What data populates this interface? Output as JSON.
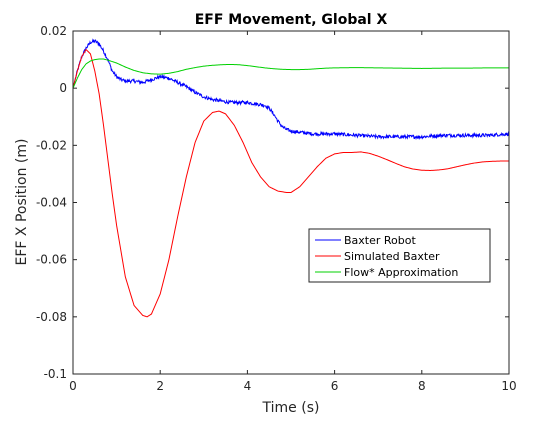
{
  "chart_data": {
    "type": "line",
    "title": "EFF Movement, Global X",
    "xlabel": "Time (s)",
    "ylabel": "EFF X Position (m)",
    "xlim": [
      0,
      10
    ],
    "ylim": [
      -0.1,
      0.02
    ],
    "xticks": [
      0,
      2,
      4,
      6,
      8,
      10
    ],
    "yticks": [
      0.02,
      0,
      -0.02,
      -0.04,
      -0.06,
      -0.08,
      -0.1
    ],
    "xtick_labels": [
      "0",
      "2",
      "4",
      "6",
      "8",
      "10"
    ],
    "ytick_labels": [
      "0.02",
      "0",
      "-0.02",
      "-0.04",
      "-0.06",
      "-0.08",
      "-0.1"
    ],
    "grid": false,
    "legend_position": "right",
    "series": [
      {
        "name": "Baxter Robot",
        "color": "#0000ff",
        "noisy": true,
        "x": [
          0,
          0.1,
          0.2,
          0.3,
          0.4,
          0.5,
          0.6,
          0.7,
          0.8,
          0.9,
          1.0,
          1.1,
          1.2,
          1.3,
          1.4,
          1.6,
          1.8,
          2.0,
          2.2,
          2.4,
          2.6,
          2.8,
          3.0,
          3.2,
          3.4,
          3.6,
          3.8,
          4.0,
          4.2,
          4.4,
          4.5,
          4.6,
          4.7,
          4.8,
          4.9,
          5.0,
          5.5,
          6.0,
          6.5,
          7.0,
          7.5,
          8.0,
          8.5,
          9.0,
          9.5,
          10.0
        ],
        "y": [
          0,
          0.006,
          0.011,
          0.014,
          0.016,
          0.0165,
          0.0155,
          0.013,
          0.01,
          0.006,
          0.004,
          0.003,
          0.0025,
          0.0025,
          0.0025,
          0.002,
          0.003,
          0.004,
          0.0035,
          0.002,
          0.0005,
          -0.0015,
          -0.003,
          -0.004,
          -0.0045,
          -0.005,
          -0.005,
          -0.005,
          -0.0055,
          -0.006,
          -0.007,
          -0.009,
          -0.0115,
          -0.0135,
          -0.0145,
          -0.015,
          -0.016,
          -0.016,
          -0.0165,
          -0.017,
          -0.017,
          -0.017,
          -0.0165,
          -0.0165,
          -0.0165,
          -0.016
        ]
      },
      {
        "name": "Simulated Baxter",
        "color": "#ff0000",
        "noisy": false,
        "x": [
          0,
          0.1,
          0.2,
          0.3,
          0.4,
          0.5,
          0.6,
          0.7,
          0.8,
          0.9,
          1.0,
          1.2,
          1.4,
          1.6,
          1.7,
          1.8,
          2.0,
          2.2,
          2.4,
          2.6,
          2.8,
          3.0,
          3.2,
          3.35,
          3.5,
          3.7,
          3.9,
          4.1,
          4.3,
          4.5,
          4.7,
          4.9,
          5.0,
          5.2,
          5.4,
          5.6,
          5.8,
          6.0,
          6.2,
          6.4,
          6.6,
          6.8,
          7.0,
          7.2,
          7.4,
          7.6,
          7.8,
          8.0,
          8.2,
          8.4,
          8.6,
          8.8,
          9.0,
          9.2,
          9.4,
          9.6,
          9.8,
          10.0
        ],
        "y": [
          0,
          0.006,
          0.011,
          0.0135,
          0.012,
          0.006,
          -0.002,
          -0.013,
          -0.025,
          -0.037,
          -0.048,
          -0.066,
          -0.076,
          -0.0795,
          -0.08,
          -0.079,
          -0.072,
          -0.06,
          -0.045,
          -0.031,
          -0.019,
          -0.0115,
          -0.0085,
          -0.008,
          -0.009,
          -0.013,
          -0.019,
          -0.026,
          -0.031,
          -0.0345,
          -0.036,
          -0.0365,
          -0.0365,
          -0.0345,
          -0.031,
          -0.0275,
          -0.0245,
          -0.023,
          -0.0225,
          -0.0225,
          -0.0223,
          -0.0228,
          -0.0238,
          -0.025,
          -0.0263,
          -0.0275,
          -0.0283,
          -0.0287,
          -0.0288,
          -0.0286,
          -0.0282,
          -0.0275,
          -0.0268,
          -0.0262,
          -0.0258,
          -0.0256,
          -0.0255,
          -0.0255
        ]
      },
      {
        "name": "Flow* Approximation",
        "color": "#00d000",
        "noisy": false,
        "x": [
          0,
          0.1,
          0.2,
          0.3,
          0.4,
          0.5,
          0.6,
          0.7,
          0.8,
          1.0,
          1.2,
          1.4,
          1.6,
          1.8,
          2.0,
          2.2,
          2.4,
          2.6,
          2.8,
          3.0,
          3.2,
          3.4,
          3.6,
          3.8,
          4.0,
          4.2,
          4.4,
          4.6,
          4.8,
          5.0,
          5.2,
          5.4,
          5.6,
          5.8,
          6.0,
          6.5,
          7.0,
          7.5,
          8.0,
          8.5,
          9.0,
          9.5,
          10.0
        ],
        "y": [
          0,
          0.0035,
          0.0065,
          0.0085,
          0.0095,
          0.01,
          0.0102,
          0.0102,
          0.0098,
          0.0088,
          0.0074,
          0.0062,
          0.0054,
          0.005,
          0.0049,
          0.0052,
          0.0058,
          0.0066,
          0.0072,
          0.0077,
          0.008,
          0.0082,
          0.0083,
          0.0082,
          0.0079,
          0.0075,
          0.0071,
          0.0068,
          0.0066,
          0.0065,
          0.0065,
          0.0066,
          0.0068,
          0.007,
          0.0071,
          0.0072,
          0.0071,
          0.007,
          0.0069,
          0.007,
          0.007,
          0.0071,
          0.0071
        ]
      }
    ]
  }
}
